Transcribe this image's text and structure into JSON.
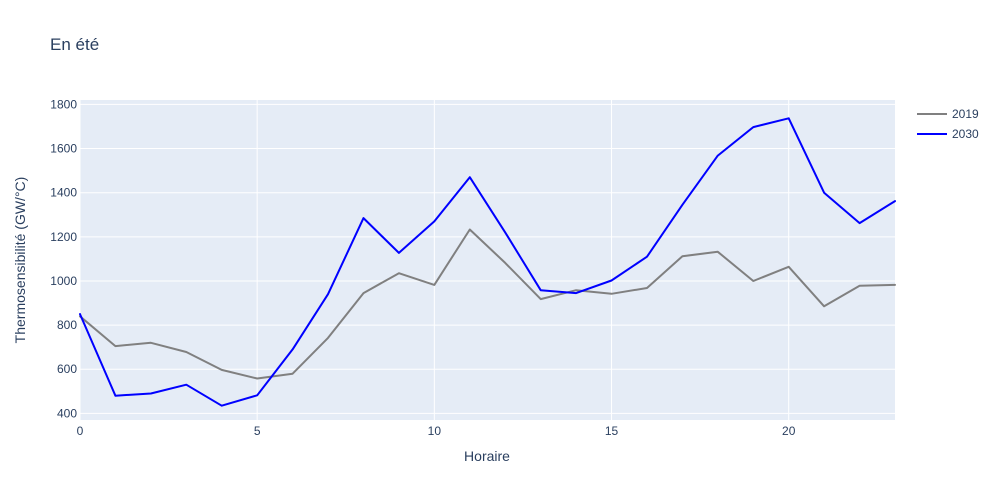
{
  "chart_data": {
    "type": "line",
    "title": "En été",
    "xlabel": "Horaire",
    "ylabel": "Thermosensibilité (GW/°C)",
    "x": [
      0,
      1,
      2,
      3,
      4,
      5,
      6,
      7,
      8,
      9,
      10,
      11,
      12,
      13,
      14,
      15,
      16,
      17,
      18,
      19,
      20,
      21,
      22,
      23
    ],
    "xlim": [
      0,
      23
    ],
    "ylim": [
      370,
      1820
    ],
    "x_ticks": [
      0,
      5,
      10,
      15,
      20
    ],
    "y_ticks": [
      400,
      600,
      800,
      1000,
      1200,
      1400,
      1600,
      1800
    ],
    "grid": true,
    "legend_position": "top-right",
    "plot_background": "#e5ecf6",
    "series": [
      {
        "name": "2019",
        "color": "#808080",
        "values": [
          840,
          705,
          720,
          678,
          597,
          558,
          580,
          742,
          945,
          1035,
          982,
          1233,
          1082,
          918,
          958,
          942,
          968,
          1112,
          1132,
          1000,
          1064,
          885,
          978,
          982
        ]
      },
      {
        "name": "2030",
        "color": "#0000ff",
        "values": [
          850,
          480,
          490,
          530,
          435,
          482,
          690,
          940,
          1285,
          1127,
          1270,
          1470,
          1220,
          958,
          945,
          1002,
          1110,
          1345,
          1568,
          1697,
          1737,
          1400,
          1262,
          1362
        ]
      }
    ]
  }
}
